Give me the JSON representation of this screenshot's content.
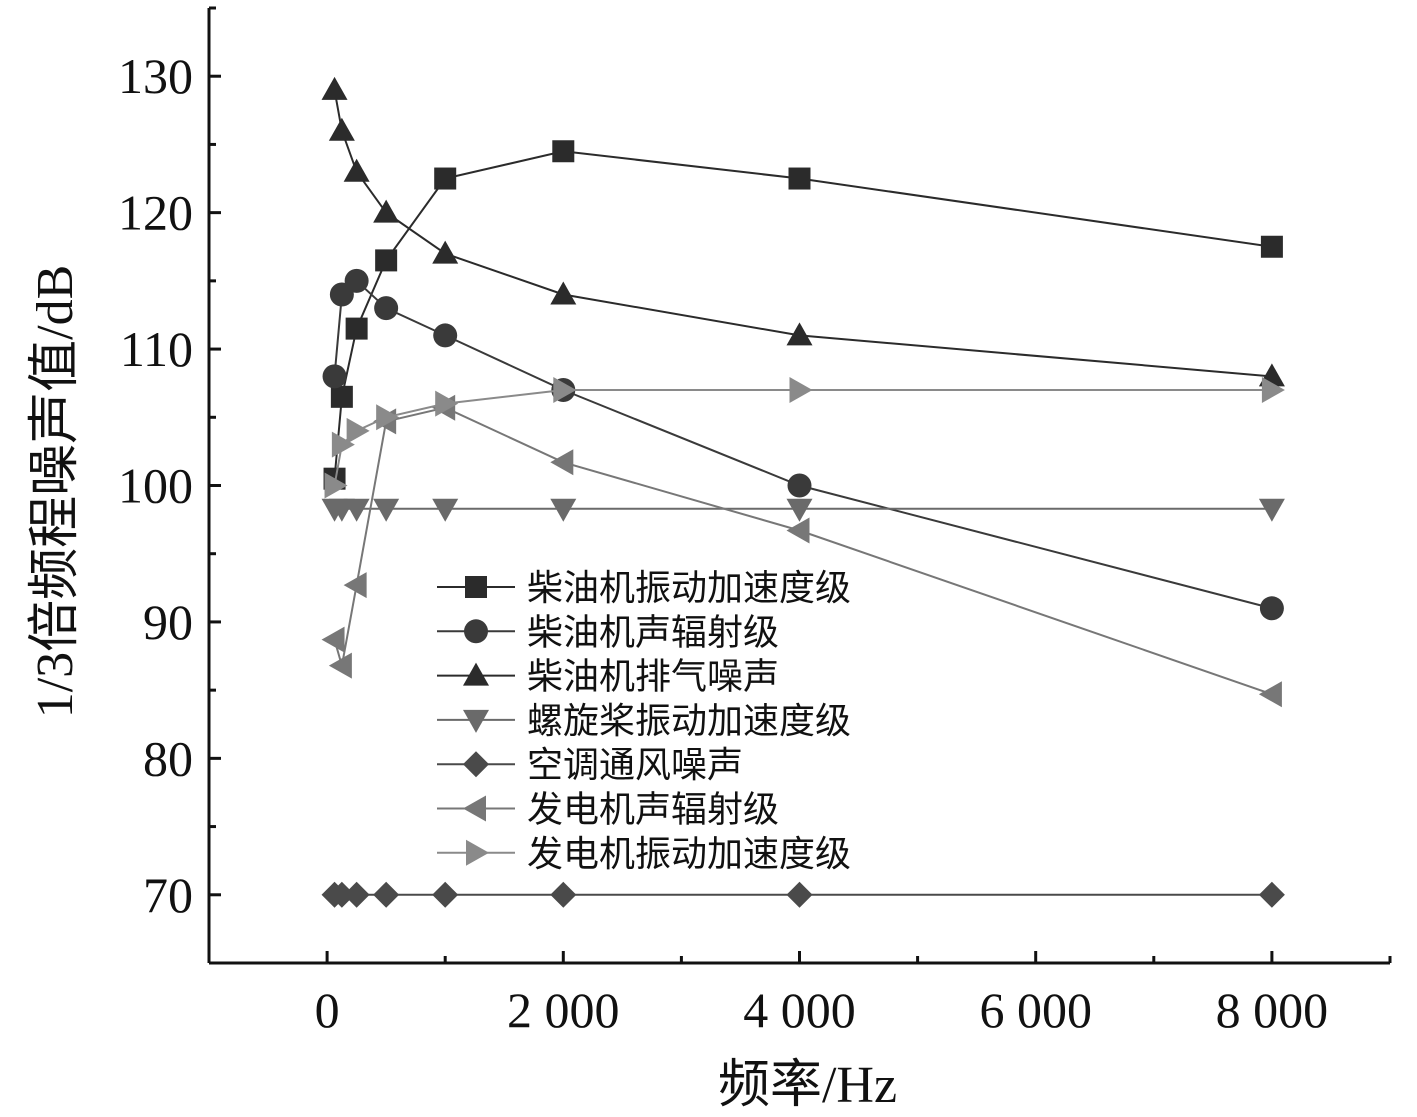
{
  "chart_data": {
    "type": "line",
    "title": "",
    "xlabel": "频率/Hz",
    "ylabel": "1/3倍频程噪声值/dB",
    "xlim": [
      -1000,
      9000
    ],
    "ylim": [
      65,
      135
    ],
    "xticks": [
      0,
      2000,
      4000,
      6000,
      8000
    ],
    "xtick_labels": [
      "0",
      "2 000",
      "4 000",
      "6 000",
      "8 000"
    ],
    "yticks": [
      70,
      80,
      90,
      100,
      110,
      120,
      130
    ],
    "ytick_labels": [
      "70",
      "80",
      "90",
      "100",
      "110",
      "120",
      "130"
    ],
    "grid": false,
    "legend_position": "center",
    "x": [
      63,
      125,
      250,
      500,
      1000,
      2000,
      4000,
      8000
    ],
    "series": [
      {
        "name": "柴油机振动加速度级",
        "marker": "square",
        "color": "#2b2b2b",
        "values": [
          100.5,
          106.5,
          111.5,
          116.5,
          122.5,
          124.5,
          122.5,
          117.5
        ]
      },
      {
        "name": "柴油机声辐射级",
        "marker": "circle",
        "color": "#3a3a3a",
        "values": [
          108,
          114,
          115,
          113,
          111,
          107,
          100,
          91
        ]
      },
      {
        "name": "柴油机排气噪声",
        "marker": "triangle-up",
        "color": "#2b2b2b",
        "values": [
          129,
          126,
          123,
          120,
          117,
          114,
          111,
          108
        ]
      },
      {
        "name": "螺旋桨振动加速度级",
        "marker": "triangle-down",
        "color": "#6a6a6a",
        "values": [
          98.3,
          98.3,
          98.3,
          98.3,
          98.3,
          98.3,
          98.3,
          98.3
        ]
      },
      {
        "name": "空调通风噪声",
        "marker": "diamond",
        "color": "#4a4a4a",
        "values": [
          70,
          70,
          70,
          70,
          70,
          70,
          70,
          70
        ]
      },
      {
        "name": "发电机声辐射级",
        "marker": "triangle-left",
        "color": "#777777",
        "values": [
          88.7,
          86.8,
          92.7,
          104.7,
          105.7,
          101.7,
          96.7,
          84.7
        ]
      },
      {
        "name": "发电机振动加速度级",
        "marker": "triangle-right",
        "color": "#8a8a8a",
        "values": [
          100,
          103,
          104,
          105,
          106,
          107,
          107,
          107
        ]
      }
    ]
  }
}
